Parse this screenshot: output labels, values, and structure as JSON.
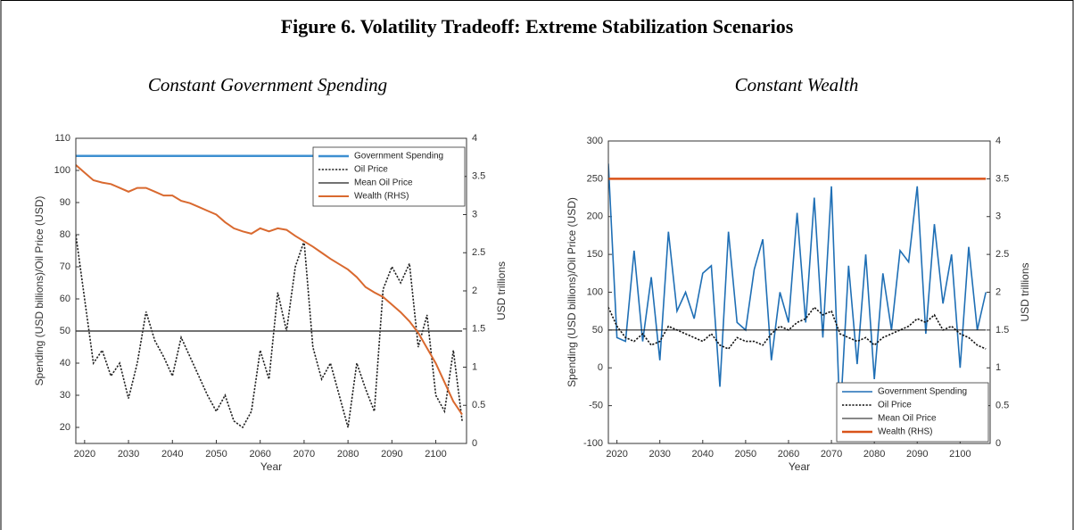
{
  "title": "Figure 6. Volatility Tradeoff: Extreme Stabilization Scenarios",
  "chart_data": [
    {
      "type": "line",
      "title": "Constant Government Spending",
      "xlabel": "Year",
      "ylabel": "Spending (USD billions)/Oil Price (USD)",
      "y2label": "USD trillions",
      "xlim": [
        2018,
        2107
      ],
      "xticks": [
        2020,
        2030,
        2040,
        2050,
        2060,
        2070,
        2080,
        2090,
        2100
      ],
      "ylim": [
        15,
        110
      ],
      "yticks": [
        20,
        30,
        40,
        50,
        60,
        70,
        80,
        90,
        100,
        110
      ],
      "y2lim": [
        0,
        4
      ],
      "y2ticks": [
        0,
        0.5,
        1,
        1.5,
        2,
        2.5,
        3,
        3.5,
        4
      ],
      "legend": "upper right",
      "x": [
        2018,
        2020,
        2022,
        2024,
        2026,
        2028,
        2030,
        2032,
        2034,
        2036,
        2038,
        2040,
        2042,
        2044,
        2046,
        2048,
        2050,
        2052,
        2054,
        2056,
        2058,
        2060,
        2062,
        2064,
        2066,
        2068,
        2070,
        2072,
        2074,
        2076,
        2078,
        2080,
        2082,
        2084,
        2086,
        2088,
        2090,
        2092,
        2094,
        2096,
        2098,
        2100,
        2102,
        2104,
        2106
      ],
      "series": [
        {
          "name": "Government Spending",
          "color": "#3d8fd1",
          "style": "solid",
          "width": 2.5,
          "values": [
            104.5,
            104.5,
            104.5,
            104.5,
            104.5,
            104.5,
            104.5,
            104.5,
            104.5,
            104.5,
            104.5,
            104.5,
            104.5,
            104.5,
            104.5,
            104.5,
            104.5,
            104.5,
            104.5,
            104.5,
            104.5,
            104.5,
            104.5,
            104.5,
            104.5,
            104.5,
            104.5,
            104.5,
            104.5,
            104.5,
            104.5,
            104.5,
            104.5,
            104.5,
            104.5,
            104.5,
            104.5,
            104.5,
            104.5,
            104.5,
            104.5,
            104.5,
            104.5,
            104.5,
            104.5
          ]
        },
        {
          "name": "Oil Price",
          "color": "#222222",
          "style": "dotted",
          "width": 1.6,
          "values": [
            80,
            60,
            40,
            44,
            36,
            40,
            29,
            40,
            56,
            47,
            42,
            36,
            48,
            42,
            36,
            30,
            25,
            30,
            22,
            20,
            25,
            44,
            35,
            62,
            50,
            70,
            78,
            45,
            35,
            40,
            30,
            20,
            40,
            32,
            25,
            63,
            70,
            65,
            71,
            45,
            55,
            30,
            25,
            44,
            22
          ]
        },
        {
          "name": "Mean Oil Price",
          "color": "#444444",
          "style": "solid",
          "width": 1.4,
          "values": [
            50,
            50,
            50,
            50,
            50,
            50,
            50,
            50,
            50,
            50,
            50,
            50,
            50,
            50,
            50,
            50,
            50,
            50,
            50,
            50,
            50,
            50,
            50,
            50,
            50,
            50,
            50,
            50,
            50,
            50,
            50,
            50,
            50,
            50,
            50,
            50,
            50,
            50,
            50,
            50,
            50,
            50,
            50,
            50,
            50
          ]
        },
        {
          "name": "Wealth (RHS)",
          "color": "#d9692f",
          "style": "solid",
          "width": 2,
          "axis": "y2",
          "values": [
            3.65,
            3.55,
            3.45,
            3.42,
            3.4,
            3.35,
            3.3,
            3.35,
            3.35,
            3.3,
            3.25,
            3.25,
            3.18,
            3.15,
            3.1,
            3.05,
            3.0,
            2.9,
            2.82,
            2.78,
            2.75,
            2.82,
            2.78,
            2.82,
            2.8,
            2.72,
            2.65,
            2.58,
            2.5,
            2.42,
            2.35,
            2.28,
            2.18,
            2.05,
            1.98,
            1.92,
            1.82,
            1.72,
            1.6,
            1.45,
            1.25,
            1.05,
            0.8,
            0.55,
            0.38
          ]
        }
      ]
    },
    {
      "type": "line",
      "title": "Constant Wealth",
      "xlabel": "Year",
      "ylabel": "Spending (USD billions)/Oil Price (USD)",
      "y2label": "USD trillions",
      "xlim": [
        2018,
        2107
      ],
      "xticks": [
        2020,
        2030,
        2040,
        2050,
        2060,
        2070,
        2080,
        2090,
        2100
      ],
      "ylim": [
        -100,
        300
      ],
      "yticks": [
        -100,
        -50,
        0,
        50,
        100,
        150,
        200,
        250,
        300
      ],
      "y2lim": [
        0,
        4
      ],
      "y2ticks": [
        0,
        0.5,
        1,
        1.5,
        2,
        2.5,
        3,
        3.5,
        4
      ],
      "legend": "lower right",
      "x": [
        2018,
        2020,
        2022,
        2024,
        2026,
        2028,
        2030,
        2032,
        2034,
        2036,
        2038,
        2040,
        2042,
        2044,
        2046,
        2048,
        2050,
        2052,
        2054,
        2056,
        2058,
        2060,
        2062,
        2064,
        2066,
        2068,
        2070,
        2072,
        2074,
        2076,
        2078,
        2080,
        2082,
        2084,
        2086,
        2088,
        2090,
        2092,
        2094,
        2096,
        2098,
        2100,
        2102,
        2104,
        2106
      ],
      "series": [
        {
          "name": "Government Spending",
          "color": "#1f6fb5",
          "style": "solid",
          "width": 1.6,
          "values": [
            270,
            40,
            35,
            155,
            35,
            120,
            10,
            180,
            75,
            100,
            65,
            125,
            135,
            -25,
            180,
            60,
            50,
            130,
            170,
            10,
            100,
            60,
            205,
            60,
            225,
            40,
            240,
            -70,
            135,
            5,
            150,
            -15,
            125,
            50,
            155,
            140,
            240,
            45,
            190,
            85,
            150,
            0,
            160,
            50,
            100
          ]
        },
        {
          "name": "Oil Price",
          "color": "#111111",
          "style": "dotted",
          "width": 1.6,
          "values": [
            80,
            55,
            40,
            35,
            45,
            30,
            35,
            55,
            50,
            45,
            40,
            35,
            45,
            30,
            25,
            40,
            35,
            35,
            30,
            45,
            55,
            50,
            60,
            65,
            80,
            70,
            75,
            45,
            40,
            35,
            40,
            30,
            40,
            45,
            50,
            55,
            65,
            60,
            70,
            50,
            55,
            45,
            40,
            30,
            25
          ]
        },
        {
          "name": "Mean Oil Price",
          "color": "#111111",
          "style": "solid",
          "width": 1,
          "values": [
            50,
            50,
            50,
            50,
            50,
            50,
            50,
            50,
            50,
            50,
            50,
            50,
            50,
            50,
            50,
            50,
            50,
            50,
            50,
            50,
            50,
            50,
            50,
            50,
            50,
            50,
            50,
            50,
            50,
            50,
            50,
            50,
            50,
            50,
            50,
            50,
            50,
            50,
            50,
            50,
            50,
            50,
            50,
            50,
            50
          ]
        },
        {
          "name": "Wealth (RHS)",
          "color": "#d95319",
          "style": "solid",
          "width": 2.5,
          "axis": "y2",
          "values": [
            3.5,
            3.5,
            3.5,
            3.5,
            3.5,
            3.5,
            3.5,
            3.5,
            3.5,
            3.5,
            3.5,
            3.5,
            3.5,
            3.5,
            3.5,
            3.5,
            3.5,
            3.5,
            3.5,
            3.5,
            3.5,
            3.5,
            3.5,
            3.5,
            3.5,
            3.5,
            3.5,
            3.5,
            3.5,
            3.5,
            3.5,
            3.5,
            3.5,
            3.5,
            3.5,
            3.5,
            3.5,
            3.5,
            3.5,
            3.5,
            3.5,
            3.5,
            3.5,
            3.5,
            3.5
          ]
        }
      ]
    }
  ]
}
